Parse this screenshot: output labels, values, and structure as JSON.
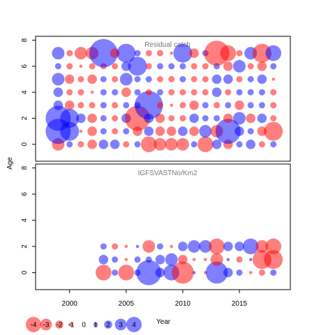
{
  "chart_data": {
    "type": "scatter",
    "subtype": "bubble",
    "colors": {
      "negative": "#ff0000",
      "positive": "#0000ff",
      "opacity": 0.5
    },
    "xlabel": "Year",
    "ylabel": "Age",
    "xlim": [
      1997,
      2019.5
    ],
    "xticks": [
      2000,
      2005,
      2010,
      2015
    ],
    "ylim": [
      -1.3,
      8.3
    ],
    "yticks": [
      0,
      2,
      4,
      6,
      8
    ],
    "panels": [
      {
        "title": "Residual catch",
        "years": [
          1999,
          2000,
          2001,
          2002,
          2003,
          2004,
          2005,
          2006,
          2007,
          2008,
          2009,
          2010,
          2011,
          2012,
          2013,
          2014,
          2015,
          2016,
          2017,
          2018
        ],
        "ages": [
          0,
          1,
          2,
          3,
          4,
          5,
          6,
          7
        ],
        "values": [
          [
            -2.0,
            1.0,
            -1.0,
            -1.5,
            1.5,
            1.5,
            -1.0,
            1.0,
            -2.5,
            -2.0,
            -2.0,
            -2.0,
            1.0,
            -2.5,
            1.5,
            -1.5,
            1.0,
            1.5,
            -1.0,
            1.0
          ],
          [
            4.0,
            3.0,
            -0.5,
            -1.5,
            1.0,
            -1.0,
            1.0,
            -1.5,
            1.5,
            -1.5,
            -1.5,
            1.5,
            -1.5,
            2.0,
            -2.0,
            4.0,
            1.5,
            1.0,
            -1.5,
            -3.0
          ],
          [
            4.0,
            3.0,
            1.5,
            -1.5,
            1.0,
            -1.0,
            1.5,
            -4.0,
            1.5,
            -1.5,
            -1.0,
            -1.0,
            1.5,
            1.0,
            1.0,
            -1.5,
            2.0,
            -1.5,
            1.5,
            -1.0
          ],
          [
            1.5,
            -1.5,
            -1.0,
            -1.0,
            1.0,
            -1.0,
            1.0,
            1.0,
            4.5,
            -1.0,
            -0.5,
            -1.0,
            -1.5,
            1.0,
            -1.0,
            1.0,
            -1.5,
            1.0,
            1.0,
            -1.0
          ],
          [
            1.5,
            -1.0,
            -1.0,
            -0.5,
            1.0,
            1.0,
            -1.5,
            1.0,
            -1.0,
            1.0,
            -1.0,
            -1.0,
            -1.0,
            -1.0,
            1.5,
            -1.0,
            1.0,
            1.0,
            1.0,
            -1.0
          ],
          [
            2.0,
            -1.5,
            -1.0,
            -1.5,
            1.0,
            -1.0,
            2.0,
            1.0,
            1.0,
            -1.0,
            -1.0,
            1.0,
            -1.0,
            -1.0,
            1.5,
            1.5,
            -1.0,
            1.0,
            1.5,
            -0.5
          ],
          [
            1.0,
            -1.0,
            -0.5,
            -1.0,
            -1.0,
            -1.0,
            1.5,
            3.0,
            -1.0,
            1.0,
            1.0,
            1.0,
            -1.0,
            -1.0,
            1.0,
            -1.5,
            2.0,
            -1.0,
            -1.5,
            1.0
          ],
          [
            2.0,
            -1.0,
            -2.0,
            -2.0,
            4.5,
            -1.5,
            3.0,
            1.0,
            -1.0,
            -1.0,
            -0.5,
            3.0,
            -1.5,
            1.0,
            -4.0,
            -2.5,
            -1.0,
            2.0,
            -3.0,
            2.5
          ]
        ]
      },
      {
        "title": "IGFSVASTNo/Km2",
        "years": [
          2003,
          2004,
          2005,
          2006,
          2007,
          2008,
          2009,
          2010,
          2011,
          2012,
          2013,
          2014,
          2015,
          2016,
          2017,
          2018
        ],
        "ages": [
          0,
          1,
          2
        ],
        "values": [
          [
            -2.5,
            1.0,
            -2.5,
            1.0,
            4.0,
            1.5,
            2.5,
            -3.5,
            0.5,
            -0.5,
            3.5,
            1.5,
            1.0,
            -0.5,
            -1.0,
            1.0
          ],
          [
            1.5,
            1.0,
            -0.5,
            1.0,
            1.0,
            1.5,
            2.0,
            -1.5,
            -0.5,
            -0.5,
            -2.0,
            0.5,
            -1.0,
            0.5,
            -3.0,
            -3.0
          ],
          [
            1.0,
            -1.0,
            -0.5,
            0.5,
            -2.0,
            1.0,
            -0.5,
            1.5,
            2.0,
            2.0,
            -2.5,
            1.5,
            1.5,
            2.5,
            -2.0,
            -2.5
          ]
        ]
      }
    ],
    "legend": {
      "placement": "bottom-left",
      "values": [
        -4,
        -3,
        -2,
        -1,
        0,
        1,
        2,
        3,
        4
      ]
    }
  }
}
